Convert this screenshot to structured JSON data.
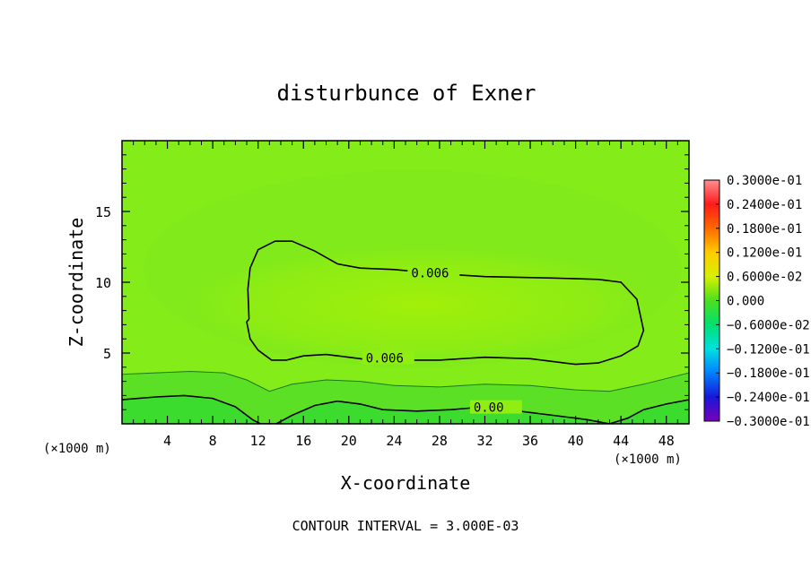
{
  "chart_data": {
    "type": "heatmap",
    "title": "disturbunce of Exner",
    "xlabel": "X-coordinate",
    "ylabel": "Z-coordinate",
    "x_unit": "(×1000 m)",
    "y_unit": "(×1000 m)",
    "xlim": [
      0,
      50
    ],
    "ylim": [
      0,
      20
    ],
    "x_ticks": [
      "4",
      "8",
      "12",
      "16",
      "20",
      "24",
      "28",
      "32",
      "36",
      "40",
      "44",
      "48"
    ],
    "x_tick_values": [
      4,
      8,
      12,
      16,
      20,
      24,
      28,
      32,
      36,
      40,
      44,
      48
    ],
    "y_ticks": [
      "5",
      "10",
      "15"
    ],
    "y_tick_values": [
      5,
      10,
      15
    ],
    "footer": "CONTOUR INTERVAL = 3.000E-03",
    "contours": [
      {
        "label": "0.006",
        "value": 0.006,
        "points": [
          [
            11.2,
            7.4
          ],
          [
            11.0,
            7.2
          ],
          [
            11.3,
            6.0
          ],
          [
            12.0,
            5.2
          ],
          [
            13.2,
            4.5
          ],
          [
            14.5,
            4.5
          ],
          [
            16,
            4.8
          ],
          [
            18,
            4.9
          ],
          [
            20,
            4.7
          ],
          [
            22,
            4.5
          ],
          [
            24,
            4.5
          ],
          [
            28,
            4.5
          ],
          [
            32,
            4.7
          ],
          [
            36,
            4.6
          ],
          [
            40,
            4.2
          ],
          [
            42,
            4.3
          ],
          [
            44,
            4.8
          ],
          [
            45.5,
            5.5
          ],
          [
            46.0,
            6.6
          ],
          [
            45.4,
            8.8
          ],
          [
            44.0,
            10.0
          ],
          [
            42,
            10.2
          ],
          [
            38,
            10.3
          ],
          [
            32,
            10.4
          ],
          [
            28,
            10.6
          ],
          [
            24,
            10.9
          ],
          [
            21,
            11.0
          ],
          [
            19,
            11.3
          ],
          [
            17,
            12.2
          ],
          [
            15,
            12.9
          ],
          [
            13.5,
            12.9
          ],
          [
            12,
            12.3
          ],
          [
            11.3,
            11.0
          ],
          [
            11.1,
            9.5
          ],
          [
            11.2,
            7.4
          ]
        ],
        "label_at": [
          [
            25.5,
            10.6
          ],
          [
            21.5,
            4.6
          ]
        ]
      },
      {
        "label": "0.00",
        "value": 0.0,
        "points": [
          [
            0,
            1.7
          ],
          [
            3,
            1.9
          ],
          [
            5.5,
            2.0
          ],
          [
            8,
            1.8
          ],
          [
            10,
            1.2
          ],
          [
            11.5,
            0.3
          ],
          [
            12.2,
            0
          ],
          [
            13.6,
            0
          ],
          [
            15,
            0.6
          ],
          [
            17,
            1.3
          ],
          [
            19,
            1.6
          ],
          [
            21,
            1.4
          ],
          [
            23,
            1.0
          ],
          [
            26,
            0.9
          ],
          [
            29,
            1.0
          ],
          [
            32,
            1.2
          ],
          [
            35,
            0.9
          ],
          [
            38,
            0.6
          ],
          [
            41,
            0.3
          ],
          [
            43,
            0
          ],
          [
            44.6,
            0.4
          ],
          [
            46,
            1.0
          ],
          [
            48,
            1.4
          ],
          [
            50,
            1.7
          ]
        ],
        "label_at": [
          [
            31.0,
            1.1
          ]
        ]
      },
      {
        "label": "",
        "value": 0.003,
        "points": [
          [
            0,
            3.5
          ],
          [
            3,
            3.6
          ],
          [
            6,
            3.7
          ],
          [
            9,
            3.6
          ],
          [
            11,
            3.1
          ],
          [
            13,
            2.3
          ],
          [
            15,
            2.8
          ],
          [
            18,
            3.1
          ],
          [
            21,
            3.0
          ],
          [
            24,
            2.7
          ],
          [
            28,
            2.6
          ],
          [
            32,
            2.8
          ],
          [
            36,
            2.7
          ],
          [
            40,
            2.4
          ],
          [
            43,
            2.3
          ],
          [
            46,
            2.8
          ],
          [
            50,
            3.6
          ]
        ],
        "label_at": []
      }
    ],
    "colorbar": {
      "labels": [
        "0.3000e-01",
        "0.2400e-01",
        "0.1800e-01",
        "0.1200e-01",
        "0.6000e-02",
        "0.000",
        "−0.6000e-02",
        "−0.1200e-01",
        "−0.1800e-01",
        "−0.2400e-01",
        "−0.3000e-01"
      ],
      "values": [
        0.03,
        0.024,
        0.018,
        0.012,
        0.006,
        0.0,
        -0.006,
        -0.012,
        -0.018,
        -0.024,
        -0.03
      ],
      "colors": [
        "#ff9090",
        "#ff1a1a",
        "#ff6a00",
        "#ffcc00",
        "#d8f000",
        "#4cdf1e",
        "#00e070",
        "#00e0e0",
        "#0080ff",
        "#1818d8",
        "#7a00b8"
      ]
    },
    "field_colors": {
      "background": "#84ec18",
      "core": "#a0f00a",
      "lower_band": "#40dc2a",
      "upper_halo": "#7aea1a"
    },
    "grid": false
  }
}
